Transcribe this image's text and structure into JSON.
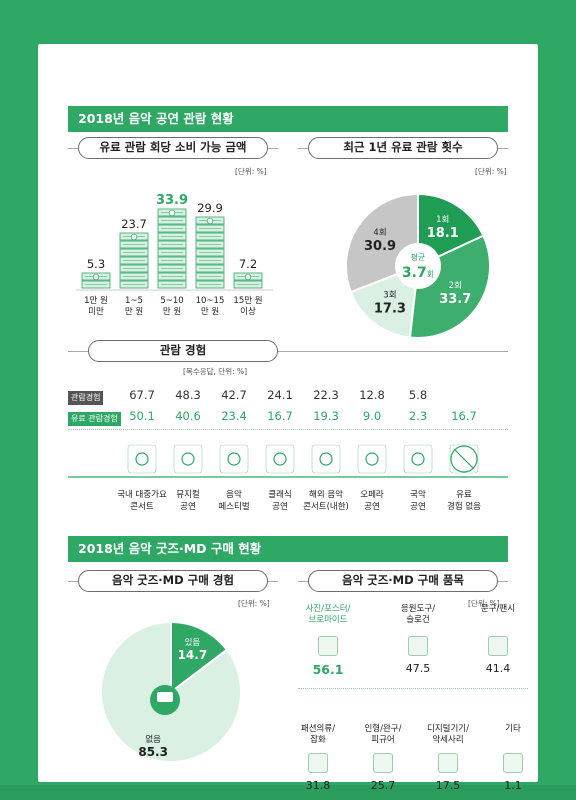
{
  "section1": {
    "header": "2018년 음악 공연 관람 현황",
    "spend": {
      "title": "유료 관람 회당 소비 가능 금액",
      "unit": "[단위: %]"
    },
    "count": {
      "title": "최근 1년 유료 관람 횟수",
      "unit": "[단위: %]",
      "avg_label": "평균",
      "avg_value": "3.7",
      "avg_suffix": "회"
    },
    "experience": {
      "title": "관람 경험",
      "unit": "[복수응답, 단위: %]",
      "row1_label": "관람경험",
      "row2_label": "유료 관람경험"
    }
  },
  "section2": {
    "header": "2018년 음악 굿즈·MD 구매 현황",
    "purchase": {
      "title": "음악 굿즈·MD 구매 경험",
      "unit": "[단위: %]"
    },
    "items": {
      "title": "음악 굿즈·MD 구매 품목",
      "unit": "[단위: %]"
    }
  },
  "chart_data": [
    {
      "type": "bar",
      "title": "유료 관람 회당 소비 가능 금액",
      "categories": [
        "1만 원\n미만",
        "1~5\n만 원",
        "5~10\n만 원",
        "10~15\n만 원",
        "15만 원\n이상"
      ],
      "values": [
        "5.3",
        "23.7",
        "33.9",
        "29.9",
        "7.2"
      ],
      "highlight_index": 2,
      "colors": {
        "bar": "#d9f0e2",
        "edge": "#2ea864",
        "highlight_text": "#2ea864"
      }
    },
    {
      "type": "pie",
      "title": "최근 1년 유료 관람 횟수",
      "slices": [
        {
          "label": "1회",
          "value": "18.1",
          "color": "#1f9d55"
        },
        {
          "label": "2회",
          "value": "33.7",
          "color": "#3dae6d"
        },
        {
          "label": "3회",
          "value": "17.3",
          "color": "#d9f0e2"
        },
        {
          "label": "4회",
          "value": "30.9",
          "color": "#c6c6c6"
        }
      ]
    },
    {
      "type": "table",
      "title": "관람 경험",
      "categories": [
        "국내 대중가요\n콘서트",
        "뮤지컬\n공연",
        "음악\n페스티벌",
        "클래식\n공연",
        "해외 음악\n콘서트(내한)",
        "오페라\n공연",
        "국악\n공연",
        "유료\n경험 없음"
      ],
      "series": [
        {
          "name": "관람경험",
          "values": [
            "67.7",
            "48.3",
            "42.7",
            "24.1",
            "22.3",
            "12.8",
            "5.8",
            ""
          ],
          "color": "#555555"
        },
        {
          "name": "유료 관람경험",
          "values": [
            "50.1",
            "40.6",
            "23.4",
            "16.7",
            "19.3",
            "9.0",
            "2.3",
            "16.7"
          ],
          "color": "#2ea864"
        }
      ],
      "icons": [
        "drum-kit-icon",
        "musical-couple-icon",
        "festival-stage-icon",
        "violin-icon",
        "concert-ticket-icon",
        "opera-mask-icon",
        "gayageum-icon",
        "no-ticket-icon"
      ]
    },
    {
      "type": "pie",
      "title": "음악 굿즈·MD 구매 경험",
      "slices": [
        {
          "label": "있음",
          "value": "14.7",
          "color": "#2ea864"
        },
        {
          "label": "없음",
          "value": "85.3",
          "color": "#d9f0e2"
        }
      ]
    },
    {
      "type": "table",
      "title": "음악 굿즈·MD 구매 품목",
      "items": [
        {
          "label": "사진/포스터/\n브로마이드",
          "value": "56.1",
          "icon": "photo-poster-icon",
          "highlight": true
        },
        {
          "label": "응원도구/\n슬로건",
          "value": "47.5",
          "icon": "cheering-stick-icon"
        },
        {
          "label": "문구/팬시",
          "value": "41.4",
          "icon": "stationery-icon"
        },
        {
          "label": "패션의류/\n잡화",
          "value": "31.8",
          "icon": "clothing-icon"
        },
        {
          "label": "인형/완구/\n피규어",
          "value": "25.7",
          "icon": "doll-icon"
        },
        {
          "label": "디지털기기/\n악세사리",
          "value": "17.5",
          "icon": "smartphone-icon"
        },
        {
          "label": "기타",
          "value": "1.1",
          "icon": "shopping-bag-icon"
        }
      ]
    }
  ]
}
